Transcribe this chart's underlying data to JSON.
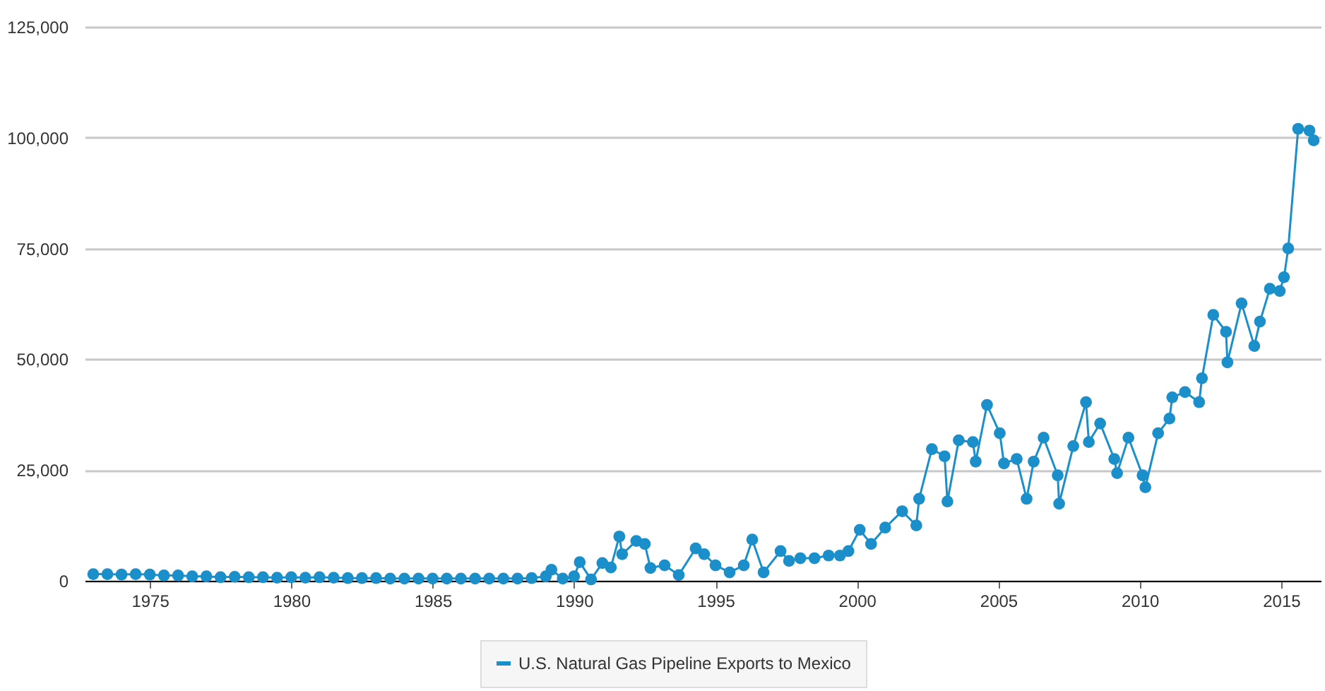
{
  "chart_data": {
    "type": "line",
    "x": [
      1973.0,
      1973.5,
      1974.0,
      1974.5,
      1975.0,
      1975.5,
      1976.0,
      1976.5,
      1977.0,
      1977.5,
      1978.0,
      1978.5,
      1979.0,
      1979.5,
      1980.0,
      1980.5,
      1981.0,
      1981.5,
      1982.0,
      1982.5,
      1983.0,
      1983.5,
      1984.0,
      1984.5,
      1985.0,
      1985.5,
      1986.0,
      1986.5,
      1987.0,
      1987.5,
      1988.0,
      1988.5,
      1989.0,
      1989.2,
      1989.6,
      1990.0,
      1990.2,
      1990.6,
      1991.0,
      1991.3,
      1991.6,
      1991.7,
      1992.2,
      1992.5,
      1992.7,
      1993.2,
      1993.7,
      1994.3,
      1994.6,
      1995.0,
      1995.5,
      1996.0,
      1996.3,
      1996.7,
      1997.3,
      1997.6,
      1998.0,
      1998.5,
      1999.0,
      1999.4,
      1999.7,
      2000.1,
      2000.5,
      2001.0,
      2001.6,
      2002.1,
      2002.2,
      2002.65,
      2003.1,
      2003.2,
      2003.6,
      2004.1,
      2004.2,
      2004.6,
      2005.05,
      2005.2,
      2005.65,
      2006.0,
      2006.25,
      2006.6,
      2007.1,
      2007.15,
      2007.65,
      2008.1,
      2008.2,
      2008.6,
      2009.1,
      2009.2,
      2009.6,
      2010.1,
      2010.2,
      2010.65,
      2011.05,
      2011.15,
      2011.6,
      2012.1,
      2012.2,
      2012.6,
      2013.05,
      2013.1,
      2013.6,
      2014.05,
      2014.25,
      2014.6,
      2014.95,
      2015.1,
      2015.25,
      2015.6,
      2016.0,
      2016.15
    ],
    "series": [
      {
        "name": "U.S. Natural Gas Pipeline Exports to Mexico",
        "color": "#1a8fc9",
        "values": [
          1500,
          1500,
          1400,
          1500,
          1400,
          1200,
          1200,
          1000,
          1000,
          800,
          900,
          800,
          800,
          700,
          800,
          700,
          800,
          700,
          600,
          600,
          600,
          500,
          500,
          500,
          500,
          500,
          500,
          500,
          500,
          500,
          500,
          600,
          1000,
          2500,
          500,
          1000,
          4200,
          300,
          4000,
          3000,
          10000,
          6000,
          9000,
          8300,
          2900,
          3500,
          1300,
          7300,
          6000,
          3500,
          1900,
          3500,
          9300,
          1900,
          6700,
          4500,
          5100,
          5100,
          5700,
          5700,
          6700,
          11500,
          8300,
          12000,
          15700,
          12500,
          18500,
          29700,
          28100,
          17900,
          31700,
          31300,
          26900,
          39700,
          33300,
          26500,
          27500,
          18500,
          26900,
          32300,
          23800,
          17400,
          30400,
          40300,
          31300,
          35500,
          27500,
          24300,
          32300,
          23800,
          21100,
          33300,
          36600,
          41400,
          42600,
          40300,
          45700,
          60000,
          56200,
          49300,
          62600,
          53000,
          58500,
          65900,
          65400,
          68500,
          75000,
          102000,
          101600,
          99400
        ]
      }
    ],
    "xlim": [
      1972.7,
      2016.4
    ],
    "xticks": [
      1975,
      1980,
      1985,
      1990,
      1995,
      2000,
      2005,
      2010,
      2015
    ],
    "ylim": [
      0,
      125000
    ],
    "yticks": [
      0,
      {
        "value": 25000,
        "label": "25,000"
      },
      {
        "value": 50000,
        "label": "50,000"
      },
      {
        "value": 75000,
        "label": "75,000"
      },
      {
        "value": 100000,
        "label": "100,000"
      },
      {
        "value": 125000,
        "label": "125,000"
      }
    ],
    "grid": "y",
    "legend": "bottom",
    "marker": "circle",
    "line_style": "solid"
  }
}
